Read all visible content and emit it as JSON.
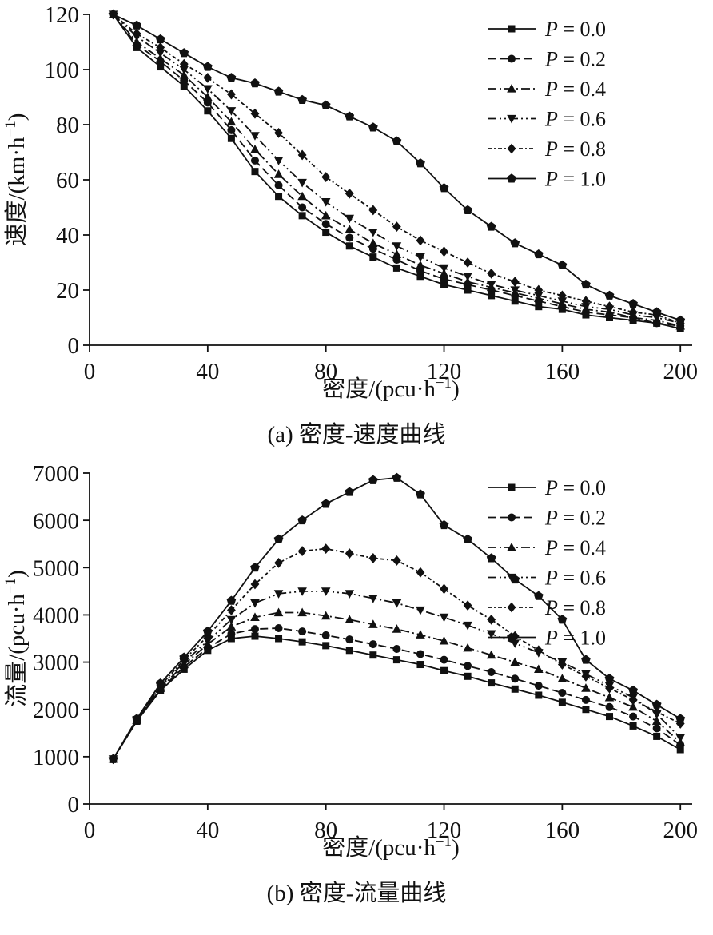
{
  "figure": {
    "caption_a": "(a) 密度-速度曲线",
    "caption_b": "(b) 密度-流量曲线"
  },
  "chart_data": [
    {
      "type": "line",
      "id": "density-speed",
      "caption": "(a) 密度-速度曲线",
      "xlabel": {
        "text": "密度/(pcu·h",
        "sup": "−1",
        "tail": ")"
      },
      "ylabel": {
        "text": "速度/(km·h",
        "sup": "−1",
        "tail": ")"
      },
      "xlim": [
        0,
        204
      ],
      "ylim": [
        0,
        120
      ],
      "xticks": [
        0,
        40,
        80,
        120,
        160,
        200
      ],
      "yticks": [
        0,
        20,
        40,
        60,
        80,
        100,
        120
      ],
      "grid": false,
      "legend_position": "top-right",
      "line_color": "#111111",
      "x": [
        8,
        16,
        24,
        32,
        40,
        48,
        56,
        64,
        72,
        80,
        88,
        96,
        104,
        112,
        120,
        128,
        136,
        144,
        152,
        160,
        168,
        176,
        184,
        192,
        200
      ],
      "series": [
        {
          "name": "P = 0.0",
          "marker": "square",
          "line_style": "solid",
          "values": [
            120,
            108,
            101,
            94,
            85,
            75,
            63,
            54,
            47,
            41,
            36,
            32,
            28,
            25,
            22,
            20,
            18,
            16,
            14,
            13,
            11,
            10,
            9,
            8,
            6
          ]
        },
        {
          "name": "P = 0.2",
          "marker": "circle",
          "line_style": "dashed",
          "values": [
            120,
            109,
            103,
            96,
            88,
            78,
            67,
            58,
            50,
            44,
            39,
            35,
            31,
            27,
            24,
            22,
            20,
            18,
            16,
            14,
            12,
            11,
            10,
            8,
            7
          ]
        },
        {
          "name": "P = 0.4",
          "marker": "triangle-up",
          "line_style": "dash-dot",
          "values": [
            120,
            110,
            104,
            98,
            90,
            81,
            71,
            62,
            54,
            47,
            42,
            37,
            33,
            29,
            26,
            23,
            21,
            19,
            17,
            15,
            13,
            12,
            10,
            9,
            7
          ]
        },
        {
          "name": "P = 0.6",
          "marker": "triangle-down",
          "line_style": "dash-dot-dot",
          "values": [
            120,
            112,
            106,
            100,
            93,
            85,
            76,
            67,
            59,
            52,
            46,
            41,
            36,
            32,
            28,
            25,
            22,
            20,
            18,
            16,
            14,
            13,
            11,
            10,
            8
          ]
        },
        {
          "name": "P = 0.8",
          "marker": "diamond",
          "line_style": "fine-dash-dot",
          "values": [
            120,
            113,
            108,
            102,
            97,
            91,
            84,
            77,
            69,
            61,
            55,
            49,
            43,
            38,
            34,
            30,
            26,
            23,
            20,
            18,
            16,
            14,
            12,
            11,
            8
          ]
        },
        {
          "name": "P = 1.0",
          "marker": "pentagon",
          "line_style": "solid",
          "values": [
            120,
            116,
            111,
            106,
            101,
            97,
            95,
            92,
            89,
            87,
            83,
            79,
            74,
            66,
            57,
            49,
            43,
            37,
            33,
            29,
            22,
            18,
            15,
            12,
            9
          ]
        }
      ]
    },
    {
      "type": "line",
      "id": "density-flow",
      "caption": "(b) 密度-流量曲线",
      "xlabel": {
        "text": "密度/(pcu·h",
        "sup": "−1",
        "tail": ")"
      },
      "ylabel": {
        "text": "流量/(pcu·h",
        "sup": "−1",
        "tail": ")"
      },
      "xlim": [
        0,
        204
      ],
      "ylim": [
        0,
        7000
      ],
      "xticks": [
        0,
        40,
        80,
        120,
        160,
        200
      ],
      "yticks": [
        0,
        1000,
        2000,
        3000,
        4000,
        5000,
        6000,
        7000
      ],
      "grid": false,
      "legend_position": "top-right",
      "line_color": "#111111",
      "x": [
        8,
        16,
        24,
        32,
        40,
        48,
        56,
        64,
        72,
        80,
        88,
        96,
        104,
        112,
        120,
        128,
        136,
        144,
        152,
        160,
        168,
        176,
        184,
        192,
        200
      ],
      "series": [
        {
          "name": "P = 0.0",
          "marker": "square",
          "line_style": "solid",
          "values": [
            950,
            1750,
            2400,
            2850,
            3250,
            3500,
            3550,
            3500,
            3430,
            3350,
            3250,
            3150,
            3050,
            2950,
            2820,
            2700,
            2560,
            2430,
            2300,
            2150,
            2000,
            1850,
            1650,
            1430,
            1150
          ]
        },
        {
          "name": "P = 0.2",
          "marker": "circle",
          "line_style": "dashed",
          "values": [
            950,
            1760,
            2420,
            2900,
            3300,
            3600,
            3700,
            3720,
            3650,
            3570,
            3480,
            3380,
            3280,
            3170,
            3050,
            2920,
            2790,
            2650,
            2500,
            2350,
            2200,
            2050,
            1850,
            1600,
            1250
          ]
        },
        {
          "name": "P = 0.4",
          "marker": "triangle-up",
          "line_style": "dash-dot",
          "values": [
            950,
            1770,
            2450,
            2950,
            3380,
            3750,
            3950,
            4050,
            4050,
            3980,
            3900,
            3800,
            3700,
            3580,
            3450,
            3300,
            3150,
            3000,
            2850,
            2650,
            2450,
            2250,
            2050,
            1750,
            1300
          ]
        },
        {
          "name": "P = 0.6",
          "marker": "triangle-down",
          "line_style": "dash-dot-dot",
          "values": [
            950,
            1780,
            2480,
            3000,
            3450,
            3900,
            4250,
            4450,
            4500,
            4500,
            4450,
            4350,
            4250,
            4100,
            3950,
            3780,
            3600,
            3400,
            3200,
            3000,
            2750,
            2500,
            2250,
            1900,
            1400
          ]
        },
        {
          "name": "P = 0.8",
          "marker": "diamond",
          "line_style": "fine-dash-dot",
          "values": [
            950,
            1790,
            2500,
            3050,
            3550,
            4100,
            4650,
            5100,
            5350,
            5400,
            5300,
            5200,
            5150,
            4900,
            4550,
            4200,
            3900,
            3550,
            3250,
            2950,
            2700,
            2450,
            2200,
            1950,
            1700
          ]
        },
        {
          "name": "P = 1.0",
          "marker": "pentagon",
          "line_style": "solid",
          "values": [
            950,
            1800,
            2550,
            3100,
            3650,
            4300,
            5000,
            5600,
            6000,
            6350,
            6600,
            6850,
            6900,
            6550,
            5900,
            5600,
            5200,
            4750,
            4400,
            3900,
            3050,
            2650,
            2400,
            2100,
            1800
          ]
        }
      ]
    }
  ]
}
